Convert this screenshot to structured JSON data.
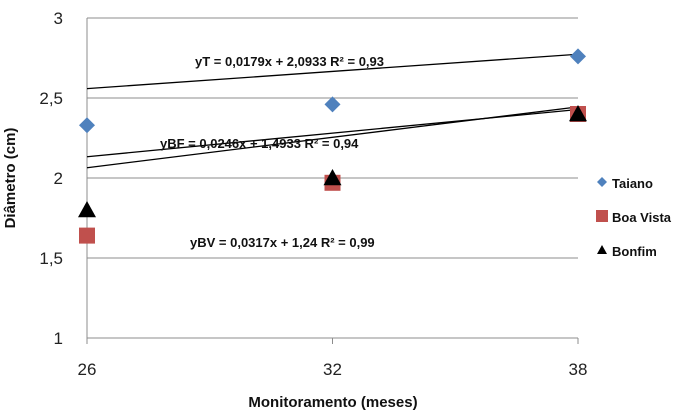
{
  "chart_data": {
    "type": "scatter",
    "xlabel": "Monitoramento  (meses)",
    "ylabel": "Diâmetro (cm)",
    "xlim": [
      26,
      38
    ],
    "ylim": [
      1,
      3
    ],
    "x_ticks": [
      "26",
      "32",
      "38"
    ],
    "y_ticks": [
      "1",
      "1,5",
      "2",
      "2,5",
      "3"
    ],
    "grid": "horizontal",
    "legend_position": "right",
    "series": [
      {
        "name": "Taiano",
        "marker": "diamond",
        "color": "#4F81BD",
        "x": [
          26,
          32,
          38
        ],
        "y": [
          2.33,
          2.46,
          2.76
        ],
        "trend": {
          "slope": 0.0179,
          "intercept": 2.0933
        },
        "equation": "yT = 0,0179x + 2,0933  R² = 0,93"
      },
      {
        "name": "Boa Vista",
        "marker": "square",
        "color": "#C0504D",
        "x": [
          26,
          32,
          38
        ],
        "y": [
          1.64,
          1.97,
          2.4
        ],
        "trend": {
          "slope": 0.0317,
          "intercept": 1.24
        },
        "equation": "yBV = 0,0317x + 1,24  R² = 0,99"
      },
      {
        "name": "Bonfim",
        "marker": "triangle",
        "color": "#000000",
        "x": [
          26,
          32,
          38
        ],
        "y": [
          1.8,
          2.0,
          2.4
        ],
        "trend": {
          "slope": 0.0246,
          "intercept": 1.4933
        },
        "equation": "yBF = 0,0246x + 1,4933  R² = 0,94"
      }
    ]
  }
}
